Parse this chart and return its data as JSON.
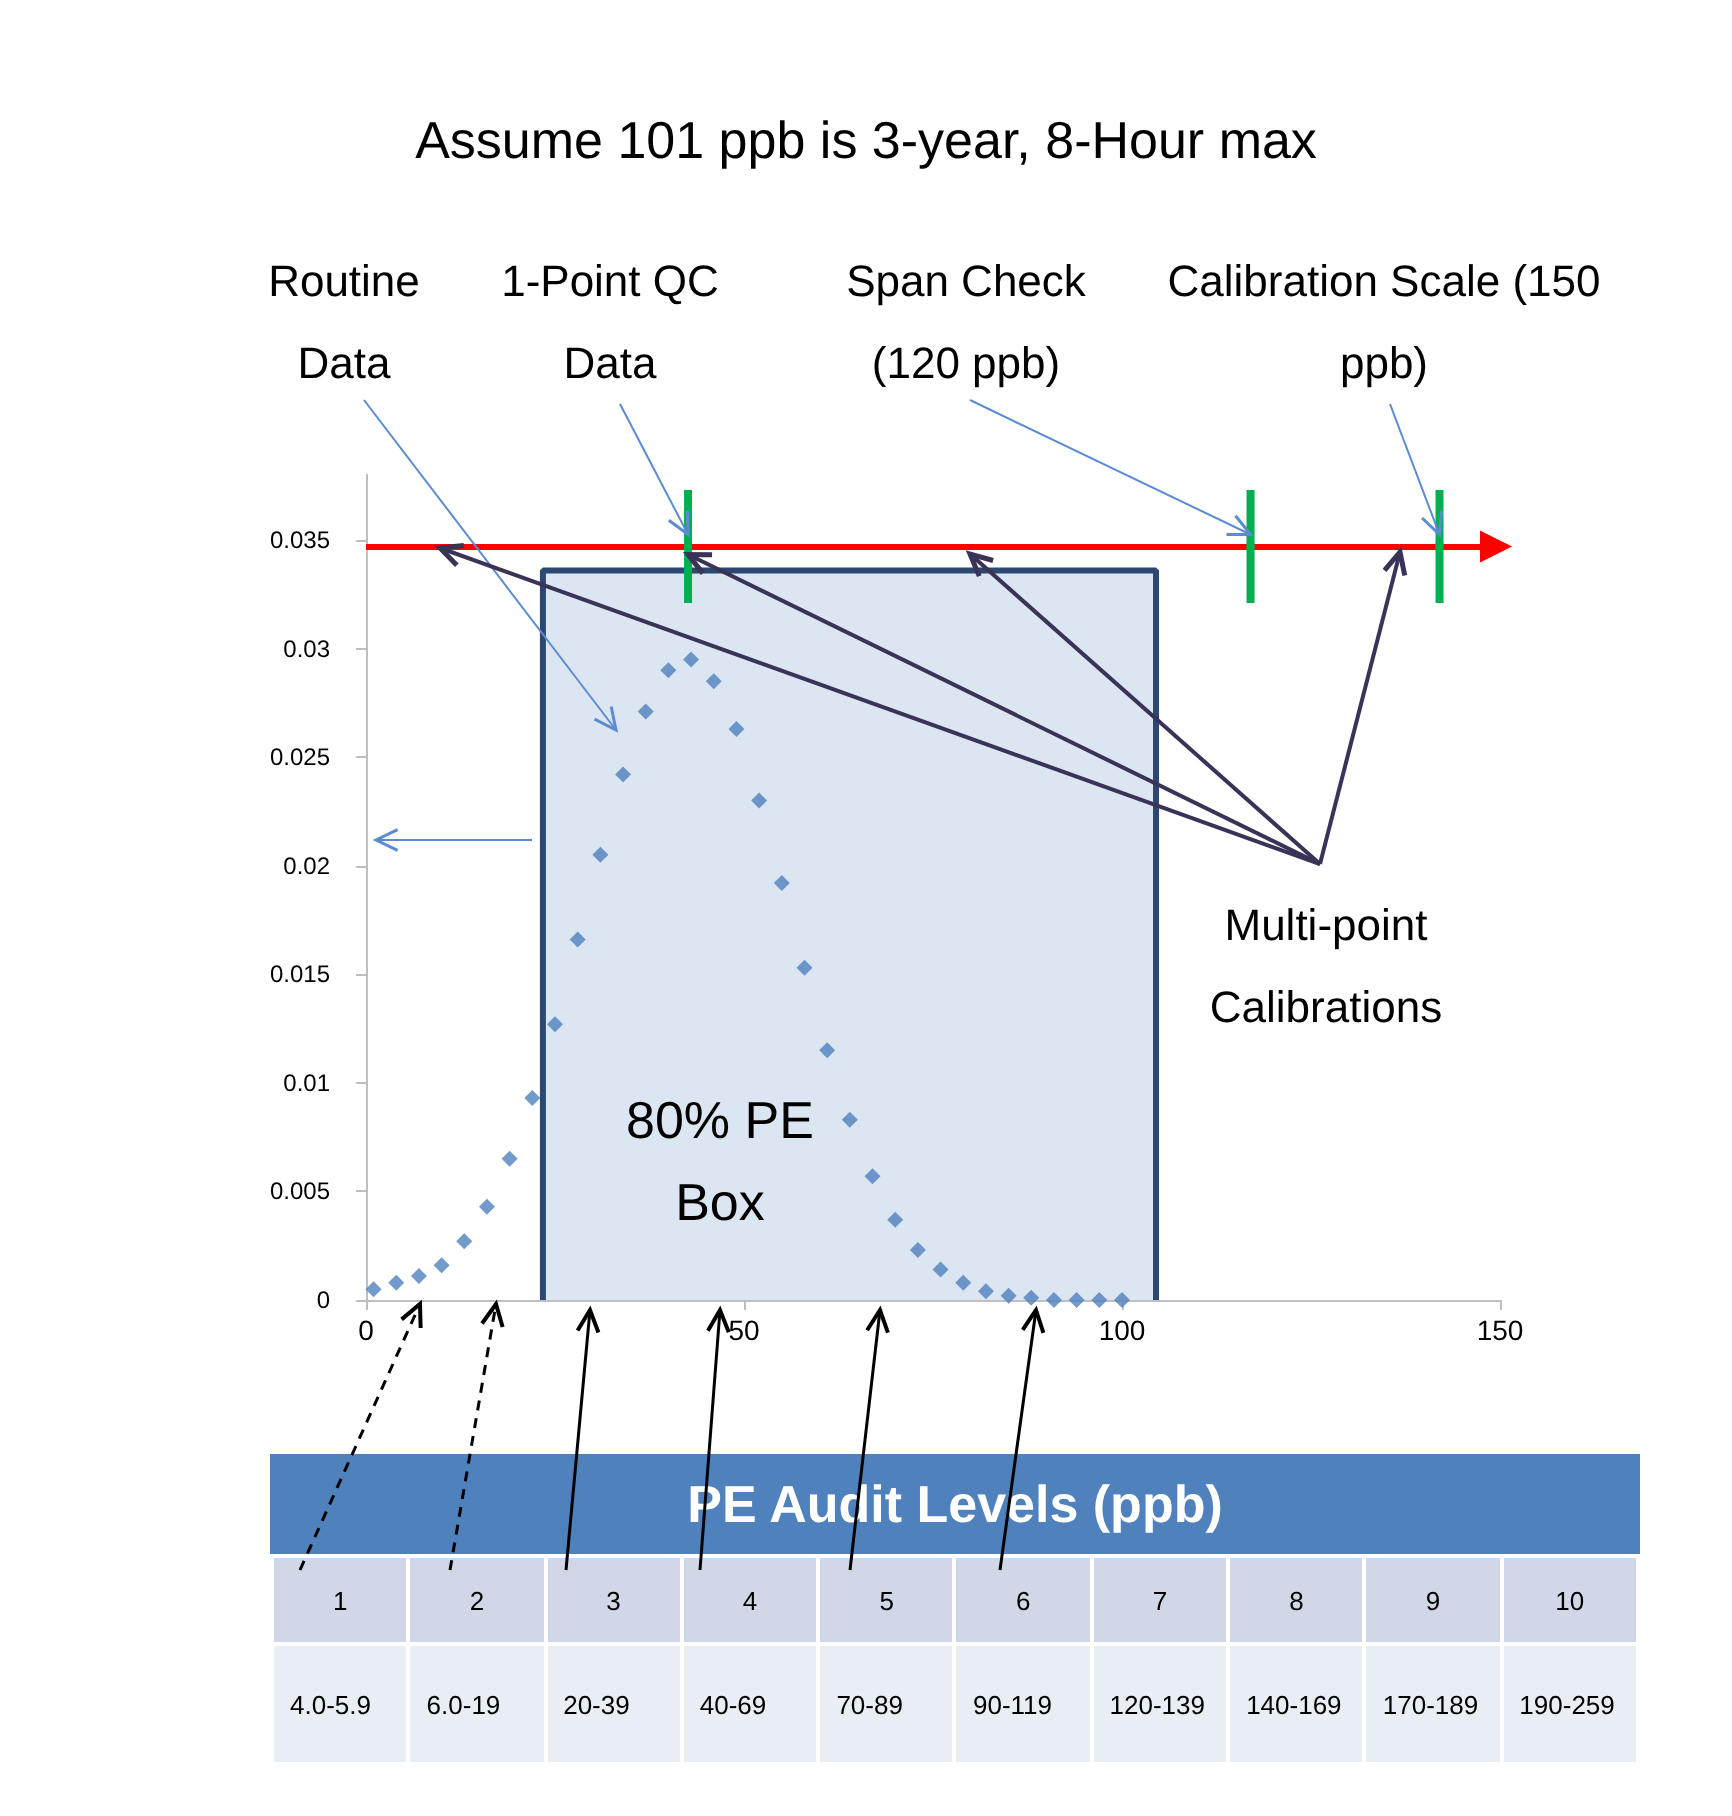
{
  "chart_data": {
    "type": "scatter",
    "title": "Assume 101 ppb is 3-year, 8-Hour max",
    "xlim": [
      0,
      150
    ],
    "xticks": [
      0,
      50,
      100,
      150
    ],
    "ylim": [
      0,
      0.038
    ],
    "yticks": [
      0,
      0.005,
      0.01,
      0.015,
      0.02,
      0.025,
      0.03,
      0.035
    ],
    "grid": false,
    "series": [
      {
        "type": "area",
        "color": "#dce6f2",
        "x": [
          23.4,
          23.4,
          104.5,
          104.5
        ],
        "values": [
          0,
          0.0336,
          0.0336,
          0
        ]
      },
      {
        "color": "#4f81bd",
        "marker": "diamond",
        "x": [
          1,
          4,
          7,
          10,
          13,
          16,
          19,
          22,
          25,
          28,
          31,
          34,
          37,
          40,
          43,
          46,
          49,
          52,
          55,
          58,
          61,
          64,
          67,
          70,
          73,
          76,
          79,
          82,
          85,
          88,
          91,
          94,
          97,
          100
        ],
        "values": [
          0.0005,
          0.0008,
          0.0011,
          0.0016,
          0.0027,
          0.0043,
          0.0065,
          0.0093,
          0.0127,
          0.0166,
          0.0205,
          0.0242,
          0.0271,
          0.029,
          0.0295,
          0.0285,
          0.0263,
          0.023,
          0.0192,
          0.0153,
          0.0115,
          0.0083,
          0.0057,
          0.0037,
          0.0023,
          0.0014,
          0.0008,
          0.0004,
          0.0002,
          0.0001,
          0,
          0,
          0,
          0
        ]
      },
      {
        "type": "scatter",
        "color": "#00b050",
        "marker": "square",
        "x": [
          42.6,
          117,
          142
        ],
        "values": [
          0.0347,
          0.0347,
          0.0347
        ],
        "errors": [
          0.0026,
          0.0026,
          0.0026
        ]
      }
    ],
    "ref_lines": [
      {
        "axis": "y",
        "value": 0.0347,
        "color": "#ff0000"
      }
    ],
    "annotations": [
      "Routine Data",
      {
        "text": "1-Point QC Data",
        "x": 42.6,
        "y": 0.0347
      },
      {
        "text": "Span Check (120 ppb)",
        "x": 117,
        "y": 0.0347
      },
      {
        "text": "Calibration Scale (150 ppb)",
        "x": 142,
        "y": 0.0347
      },
      {
        "text": "Multi-point Calibrations",
        "x": 42.6,
        "y": 0.0347
      },
      "80% PE Box",
      "PE Audit Levels (ppb)",
      "1",
      "2",
      "3",
      "4",
      "5",
      "6",
      "7",
      "8",
      "9",
      "10",
      "4.0-5.9",
      "6.0-19",
      "20-39",
      "40-69",
      "70-89",
      "90-119",
      "120-139",
      "140-169",
      "170-189",
      "190-259"
    ]
  }
}
